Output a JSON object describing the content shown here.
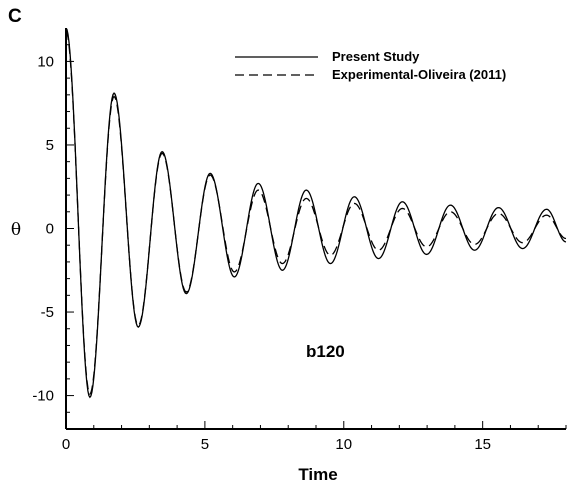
{
  "panel_label": "C",
  "chart_data": {
    "type": "line",
    "title": "",
    "xlabel": "Time",
    "ylabel": "θ",
    "xlim": [
      0,
      18
    ],
    "ylim": [
      -12,
      12
    ],
    "x_ticks": [
      0,
      5,
      10,
      15
    ],
    "x_tick_labels": [
      "0",
      "5",
      "10",
      "15"
    ],
    "y_ticks": [
      -10,
      -5,
      0,
      5,
      10
    ],
    "y_tick_labels": [
      "-10",
      "-5",
      "0",
      "5",
      "10"
    ],
    "grid": false,
    "legend_position": "top-right",
    "annotation": "b120",
    "series": [
      {
        "name": "Present Study",
        "style": "solid",
        "color": "#000000",
        "x": [
          0,
          0.86,
          1.73,
          2.6,
          3.46,
          4.33,
          5.19,
          6.06,
          6.92,
          7.79,
          8.65,
          9.52,
          10.38,
          11.25,
          12.11,
          12.98,
          13.84,
          14.71,
          15.57,
          16.44,
          17.3,
          18.0
        ],
        "y": [
          12.0,
          -10.1,
          8.1,
          -5.9,
          4.6,
          -3.9,
          3.3,
          -2.9,
          2.7,
          -2.5,
          2.3,
          -2.1,
          1.9,
          -1.8,
          1.6,
          -1.55,
          1.4,
          -1.3,
          1.25,
          -1.2,
          1.15,
          -0.8
        ]
      },
      {
        "name": "Experimental-Oliveira (2011)",
        "style": "dashed",
        "color": "#000000",
        "x": [
          0,
          0.86,
          1.73,
          2.6,
          3.46,
          4.33,
          5.19,
          6.06,
          6.92,
          7.79,
          8.65,
          9.52,
          10.38,
          11.25,
          12.11,
          12.98,
          13.84,
          14.71,
          15.57,
          16.44,
          17.3,
          18.0
        ],
        "y": [
          11.8,
          -9.9,
          7.9,
          -5.8,
          4.5,
          -3.8,
          3.2,
          -2.6,
          2.3,
          -2.1,
          1.8,
          -1.6,
          1.5,
          -1.3,
          1.2,
          -1.1,
          1.0,
          -0.95,
          0.9,
          -0.85,
          0.8,
          -0.6
        ]
      }
    ]
  }
}
